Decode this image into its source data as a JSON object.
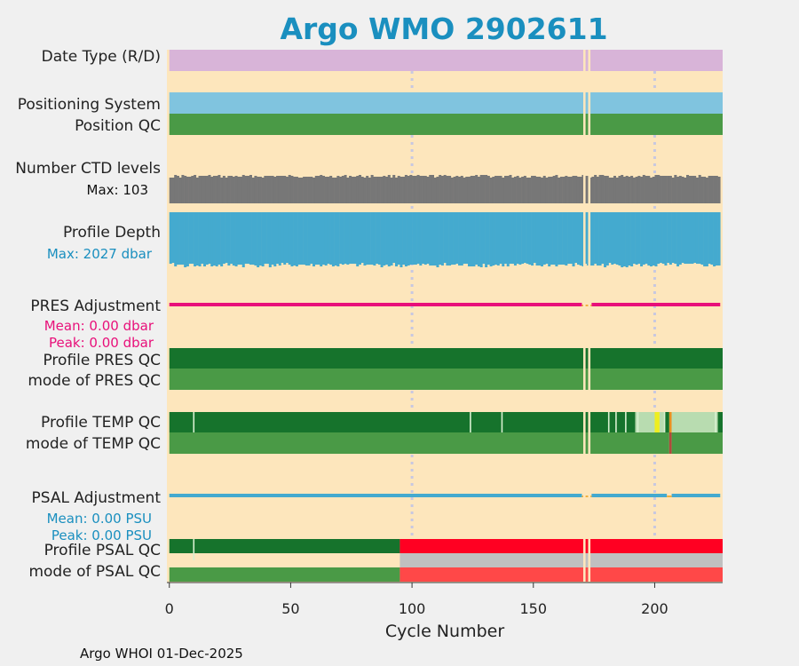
{
  "chart_data": {
    "type": "other",
    "title": "Argo WMO 2902611",
    "xlabel": "Cycle Number",
    "xlim": [
      -1,
      228
    ],
    "xticks": [
      "0",
      "50",
      "100",
      "150",
      "200"
    ],
    "xtick_values": [
      0,
      50,
      100,
      150,
      200
    ],
    "footer": "Argo WHOI 01-Dec-2025",
    "n_cycles": 227,
    "missing_cycles": [
      171,
      172,
      173
    ],
    "rows": [
      {
        "label": "Date Type (R/D)"
      },
      {
        "label": "Positioning System"
      },
      {
        "label": "Position QC"
      },
      {
        "label": "Number CTD levels",
        "sub": "Max: 103"
      },
      {
        "label": "Profile Depth",
        "sub": "Max: 2027 dbar"
      },
      {
        "label": "PRES Adjustment",
        "mean": "Mean: 0.00 dbar",
        "peak": "Peak: 0.00 dbar"
      },
      {
        "label": "Profile PRES QC"
      },
      {
        "label": "mode of PRES QC"
      },
      {
        "label": "Profile TEMP QC"
      },
      {
        "label": "mode of TEMP QC"
      },
      {
        "label": "PSAL Adjustment",
        "mean": "Mean: 0.00 PSU",
        "peak": "Peak: 0.00 PSU"
      },
      {
        "label": "Profile PSAL QC"
      },
      {
        "label": "mode of PSAL QC"
      }
    ],
    "segments": {
      "date_type": [
        {
          "from": 0,
          "to": 228,
          "color": "#d8b4d8"
        }
      ],
      "positioning_system": [
        {
          "from": 0,
          "to": 228,
          "color": "#80c4df"
        }
      ],
      "position_qc": [
        {
          "from": 0,
          "to": 228,
          "color": "#4a9a46"
        }
      ],
      "pres_qc": [
        {
          "from": 0,
          "to": 228,
          "color": "#16732c"
        }
      ],
      "pres_mode": [
        {
          "from": 0,
          "to": 228,
          "color": "#4a9a46"
        }
      ],
      "temp_qc": [
        {
          "from": 0,
          "to": 181,
          "color": "#16732c"
        },
        {
          "from": 181,
          "to": 192,
          "color": "#16732c"
        },
        {
          "from": 192,
          "to": 200,
          "color": "#b8dcb0"
        },
        {
          "from": 200,
          "to": 202,
          "color": "#eeee20"
        },
        {
          "from": 202,
          "to": 204,
          "color": "#b8dcb0"
        },
        {
          "from": 204,
          "to": 206,
          "color": "#16732c"
        },
        {
          "from": 206,
          "to": 207,
          "color": "#e89020"
        },
        {
          "from": 207,
          "to": 226,
          "color": "#b8dcb0"
        },
        {
          "from": 226,
          "to": 228,
          "color": "#16732c"
        }
      ],
      "temp_mode": [
        {
          "from": 0,
          "to": 206,
          "color": "#4a9a46"
        },
        {
          "from": 206,
          "to": 207,
          "color": "#b04a3c"
        },
        {
          "from": 207,
          "to": 228,
          "color": "#4a9a46"
        }
      ],
      "psal_qc": [
        {
          "from": 0,
          "to": 95,
          "color": "#16732c"
        },
        {
          "from": 95,
          "to": 228,
          "color": "#ff0022"
        }
      ],
      "psal_mode": [
        {
          "from": 0,
          "to": 95,
          "color": "#4a9a46"
        },
        {
          "from": 95,
          "to": 228,
          "color": "#ff4848"
        }
      ],
      "psal_mode_top": [
        {
          "from": 95,
          "to": 228,
          "color": "#c0c0c0"
        }
      ]
    },
    "temp_qc_gaps": [
      10,
      124,
      137,
      181,
      184,
      188,
      193,
      204,
      225
    ],
    "psal_qc_gaps": [
      10
    ],
    "pres_adjustment_gaps": [
      [
        170,
        174
      ]
    ],
    "psal_adjustment_gaps": [
      [
        170,
        174
      ],
      [
        205,
        207
      ]
    ],
    "pres_adjustment_value": 0.0,
    "psal_adjustment_value": 0.0,
    "colors": {
      "title": "#1a8fbf",
      "background": "#fde6bc",
      "grid": "#c8c8e0",
      "ctd": "#777777",
      "depth": "#44aacf",
      "pres_adj": "#e8107a",
      "psal_adj": "#44aacf",
      "gap": "#fde6bc"
    }
  }
}
